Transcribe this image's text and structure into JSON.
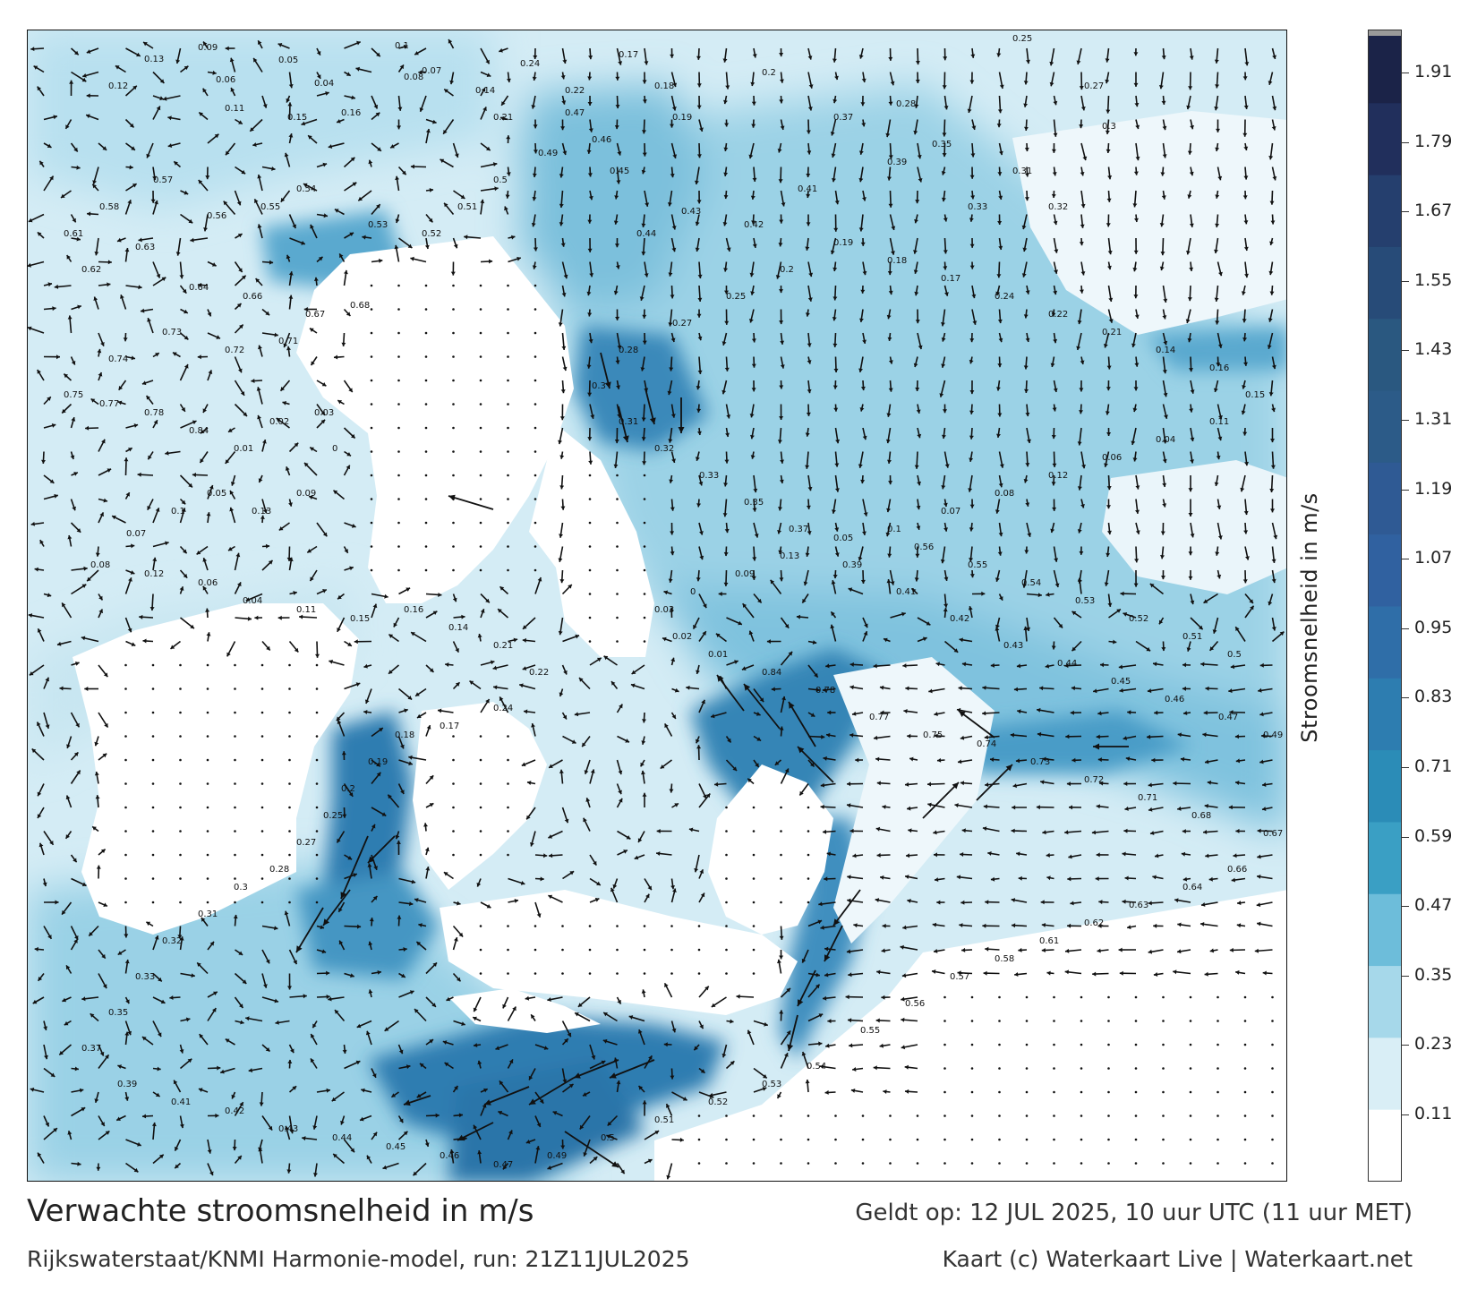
{
  "title": "Verwachte stroomsnelheid in m/s",
  "subtitle": "Rijkswaterstaat/KNMI Harmonie-model, run: 21Z11JUL2025",
  "valid_time": "Geldt op: 12 JUL 2025, 10 uur UTC (11 uur MET)",
  "credit": "Kaart (c) Waterkaart Live | Waterkaart.net",
  "colorbar": {
    "title": "Stroomsnelheid in m/s",
    "ticks": [
      "1.91",
      "1.79",
      "1.67",
      "1.55",
      "1.43",
      "1.31",
      "1.19",
      "1.07",
      "0.95",
      "0.83",
      "0.71",
      "0.59",
      "0.47",
      "0.35",
      "0.23",
      "0.11"
    ],
    "bands": [
      "#ffffff",
      "#d9eef6",
      "#a6d8ea",
      "#6dbdda",
      "#3a9fc4",
      "#2b8cb7",
      "#2d7db0",
      "#2f6ea8",
      "#3061a0",
      "#2f5a94",
      "#2c5b88",
      "#2a5880",
      "#274b78",
      "#253f6e",
      "#212f5c",
      "#1b2348"
    ]
  },
  "map": {
    "sea_color": "#8fcce2",
    "open_sea_color": "#cfe9f3",
    "fast_current_color": "#2f7db1",
    "land_color": "#ffffff",
    "speed_labels": [
      {
        "t": "0.09",
        "s": 0.09
      },
      {
        "t": "0.13",
        "s": 0.13
      },
      {
        "t": "0.05",
        "s": 0.05
      },
      {
        "t": "0.1",
        "s": 0.1
      },
      {
        "t": "0.07",
        "s": 0.07
      },
      {
        "t": "0.08",
        "s": 0.08
      },
      {
        "t": "0.12",
        "s": 0.12
      },
      {
        "t": "0.06",
        "s": 0.06
      },
      {
        "t": "0.04",
        "s": 0.04
      },
      {
        "t": "0.11",
        "s": 0.11
      },
      {
        "t": "0.15",
        "s": 0.15
      },
      {
        "t": "0.16",
        "s": 0.16
      },
      {
        "t": "0.14",
        "s": 0.14
      },
      {
        "t": "0.21",
        "s": 0.21
      },
      {
        "t": "0.22",
        "s": 0.22
      },
      {
        "t": "0.24",
        "s": 0.24
      },
      {
        "t": "0.17",
        "s": 0.17
      },
      {
        "t": "0.18",
        "s": 0.18
      },
      {
        "t": "0.19",
        "s": 0.19
      },
      {
        "t": "0.2",
        "s": 0.2
      },
      {
        "t": "0.25",
        "s": 0.25
      },
      {
        "t": "0.27",
        "s": 0.27
      },
      {
        "t": "0.28",
        "s": 0.28
      },
      {
        "t": "0.3",
        "s": 0.3
      },
      {
        "t": "0.31",
        "s": 0.31
      },
      {
        "t": "0.32",
        "s": 0.32
      },
      {
        "t": "0.33",
        "s": 0.33
      },
      {
        "t": "0.35",
        "s": 0.35
      },
      {
        "t": "0.37",
        "s": 0.37
      },
      {
        "t": "0.39",
        "s": 0.39
      },
      {
        "t": "0.41",
        "s": 0.41
      },
      {
        "t": "0.42",
        "s": 0.42
      },
      {
        "t": "0.43",
        "s": 0.43
      },
      {
        "t": "0.44",
        "s": 0.44
      },
      {
        "t": "0.45",
        "s": 0.45
      },
      {
        "t": "0.46",
        "s": 0.46
      },
      {
        "t": "0.47",
        "s": 0.47
      },
      {
        "t": "0.49",
        "s": 0.49
      },
      {
        "t": "0.5",
        "s": 0.5
      },
      {
        "t": "0.51",
        "s": 0.51
      },
      {
        "t": "0.52",
        "s": 0.52
      },
      {
        "t": "0.53",
        "s": 0.53
      },
      {
        "t": "0.54",
        "s": 0.54
      },
      {
        "t": "0.55",
        "s": 0.55
      },
      {
        "t": "0.56",
        "s": 0.56
      },
      {
        "t": "0.57",
        "s": 0.57
      },
      {
        "t": "0.58",
        "s": 0.58
      },
      {
        "t": "0.61",
        "s": 0.61
      },
      {
        "t": "0.62",
        "s": 0.62
      },
      {
        "t": "0.63",
        "s": 0.63
      },
      {
        "t": "0.64",
        "s": 0.64
      },
      {
        "t": "0.66",
        "s": 0.66
      },
      {
        "t": "0.67",
        "s": 0.67
      },
      {
        "t": "0.68",
        "s": 0.68
      },
      {
        "t": "0.71",
        "s": 0.71
      },
      {
        "t": "0.72",
        "s": 0.72
      },
      {
        "t": "0.73",
        "s": 0.73
      },
      {
        "t": "0.74",
        "s": 0.74
      },
      {
        "t": "0.75",
        "s": 0.75
      },
      {
        "t": "0.77",
        "s": 0.77
      },
      {
        "t": "0.78",
        "s": 0.78
      },
      {
        "t": "0.84",
        "s": 0.84
      },
      {
        "t": "0.01",
        "s": 0.01
      },
      {
        "t": "0.02",
        "s": 0.02
      },
      {
        "t": "0.03",
        "s": 0.03
      },
      {
        "t": "0",
        "s": 0
      }
    ]
  }
}
